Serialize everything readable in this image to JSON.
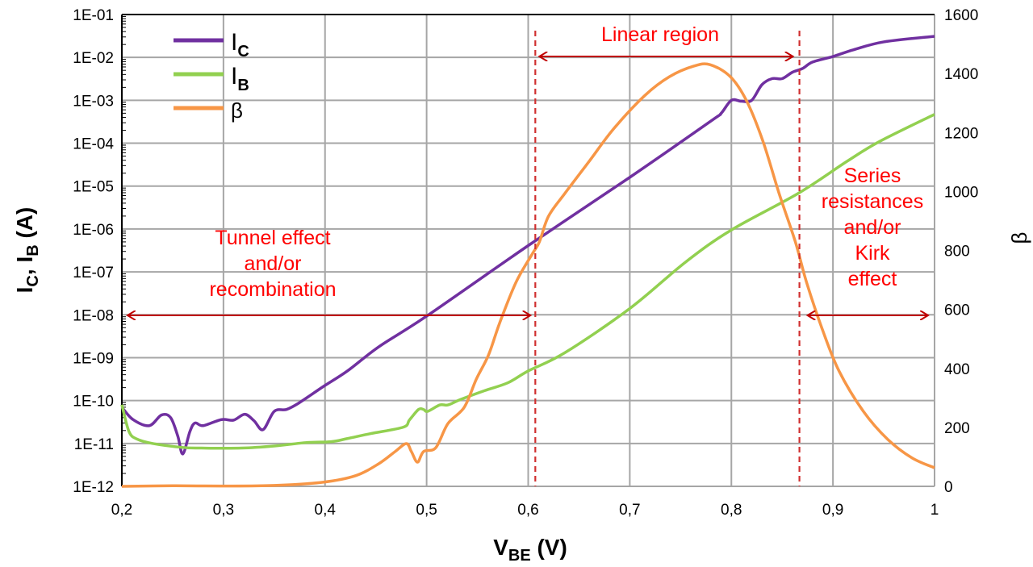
{
  "chart_data": {
    "type": "line",
    "xlabel": {
      "main": "V",
      "sub": "BE",
      "unit": " (V)"
    },
    "ylabel_left": {
      "parts": [
        [
          "I",
          "C"
        ],
        [
          "I",
          "B"
        ]
      ],
      "unit": " (A)"
    },
    "ylabel_right": "β",
    "xlim": [
      0.2,
      1.0
    ],
    "ylim_left": [
      1e-12,
      0.1
    ],
    "ylim_right": [
      0,
      1600
    ],
    "left_scale": "log",
    "grid": true,
    "legend_placement": "top-left",
    "x_ticks": [
      "0,2",
      "0,3",
      "0,4",
      "0,5",
      "0,6",
      "0,7",
      "0,8",
      "0,9",
      "1"
    ],
    "y_left_ticks": [
      "1E-12",
      "1E-11",
      "1E-10",
      "1E-09",
      "1E-08",
      "1E-07",
      "1E-06",
      "1E-05",
      "1E-04",
      "1E-03",
      "1E-02",
      "1E-01"
    ],
    "y_right_ticks": [
      "0",
      "200",
      "400",
      "600",
      "800",
      "1000",
      "1200",
      "1400",
      "1600"
    ],
    "series": [
      {
        "name": "I",
        "name_sub": "C",
        "axis": "left",
        "color": "#7030a0",
        "x": [
          0.2,
          0.211,
          0.227,
          0.239,
          0.248,
          0.255,
          0.26,
          0.267,
          0.272,
          0.28,
          0.298,
          0.31,
          0.321,
          0.33,
          0.339,
          0.35,
          0.362,
          0.374,
          0.398,
          0.422,
          0.453,
          0.5,
          0.6,
          0.7,
          0.78,
          0.79,
          0.8,
          0.81,
          0.82,
          0.83,
          0.84,
          0.85,
          0.86,
          0.87,
          0.88,
          0.9,
          0.92,
          0.95,
          1.0
        ],
        "y": [
          7e-11,
          3.6e-11,
          2.6e-11,
          4.6e-11,
          4e-11,
          1.5e-11,
          5.7e-12,
          1.9e-11,
          3e-11,
          2.6e-11,
          3.6e-11,
          3.5e-11,
          4.8e-11,
          3.4e-11,
          2.1e-11,
          5.6e-11,
          6.2e-11,
          8.7e-11,
          2.1e-10,
          4.9e-10,
          1.8e-09,
          9.3e-09,
          4.1e-07,
          1.6e-05,
          0.00033,
          0.0005,
          0.001,
          0.00095,
          0.001,
          0.0023,
          0.0032,
          0.0032,
          0.0045,
          0.0055,
          0.0078,
          0.0105,
          0.015,
          0.023,
          0.031
        ]
      },
      {
        "name": "I",
        "name_sub": "B",
        "axis": "left",
        "color": "#92d050",
        "x": [
          0.2,
          0.207,
          0.215,
          0.23,
          0.259,
          0.278,
          0.318,
          0.35,
          0.382,
          0.406,
          0.422,
          0.445,
          0.477,
          0.483,
          0.492,
          0.497,
          0.501,
          0.513,
          0.521,
          0.533,
          0.557,
          0.58,
          0.6,
          0.636,
          0.7,
          0.755,
          0.8,
          0.866,
          0.914,
          0.946,
          1.0
        ],
        "y": [
          8e-11,
          1.9e-11,
          1.26e-11,
          1e-11,
          8.1e-12,
          7.8e-12,
          7.8e-12,
          8.7e-12,
          1.05e-11,
          1.1e-11,
          1.3e-11,
          1.7e-11,
          2.4e-11,
          3.5e-11,
          6.2e-11,
          6.2e-11,
          5.6e-11,
          7.9e-11,
          7.9e-11,
          1.05e-10,
          1.7e-10,
          2.6e-10,
          4.9e-10,
          1.3e-09,
          1.4e-08,
          1.7e-07,
          9.5e-07,
          6.8e-06,
          3.8e-05,
          0.00011,
          0.00047
        ]
      },
      {
        "name": "β",
        "axis": "right",
        "color": "#f79646",
        "x": [
          0.2,
          0.25,
          0.3,
          0.35,
          0.398,
          0.43,
          0.453,
          0.469,
          0.48,
          0.485,
          0.491,
          0.497,
          0.509,
          0.521,
          0.537,
          0.549,
          0.561,
          0.572,
          0.588,
          0.604,
          0.611,
          0.62,
          0.636,
          0.66,
          0.684,
          0.715,
          0.739,
          0.763,
          0.779,
          0.799,
          0.815,
          0.831,
          0.847,
          0.863,
          0.874,
          0.89,
          0.906,
          0.93,
          0.954,
          0.978,
          1.0
        ],
        "y": [
          0,
          2,
          1,
          3,
          14,
          36,
          77,
          118,
          145,
          118,
          82,
          118,
          131,
          213,
          268,
          364,
          446,
          555,
          692,
          788,
          829,
          916,
          993,
          1102,
          1212,
          1326,
          1389,
          1425,
          1430,
          1389,
          1307,
          1171,
          993,
          829,
          692,
          528,
          391,
          254,
          159,
          96,
          63
        ]
      }
    ],
    "annotations": {
      "linear_region": "Linear region",
      "tunnel": [
        "Tunnel effect",
        "and/or",
        "recombination"
      ],
      "series_res": [
        "Series",
        "resistances",
        "and/or",
        "Kirk",
        "effect"
      ],
      "boundaries_v": [
        0.607,
        0.867
      ],
      "annotation_color": "#ff0000",
      "arrow_color": "#c00000"
    }
  }
}
